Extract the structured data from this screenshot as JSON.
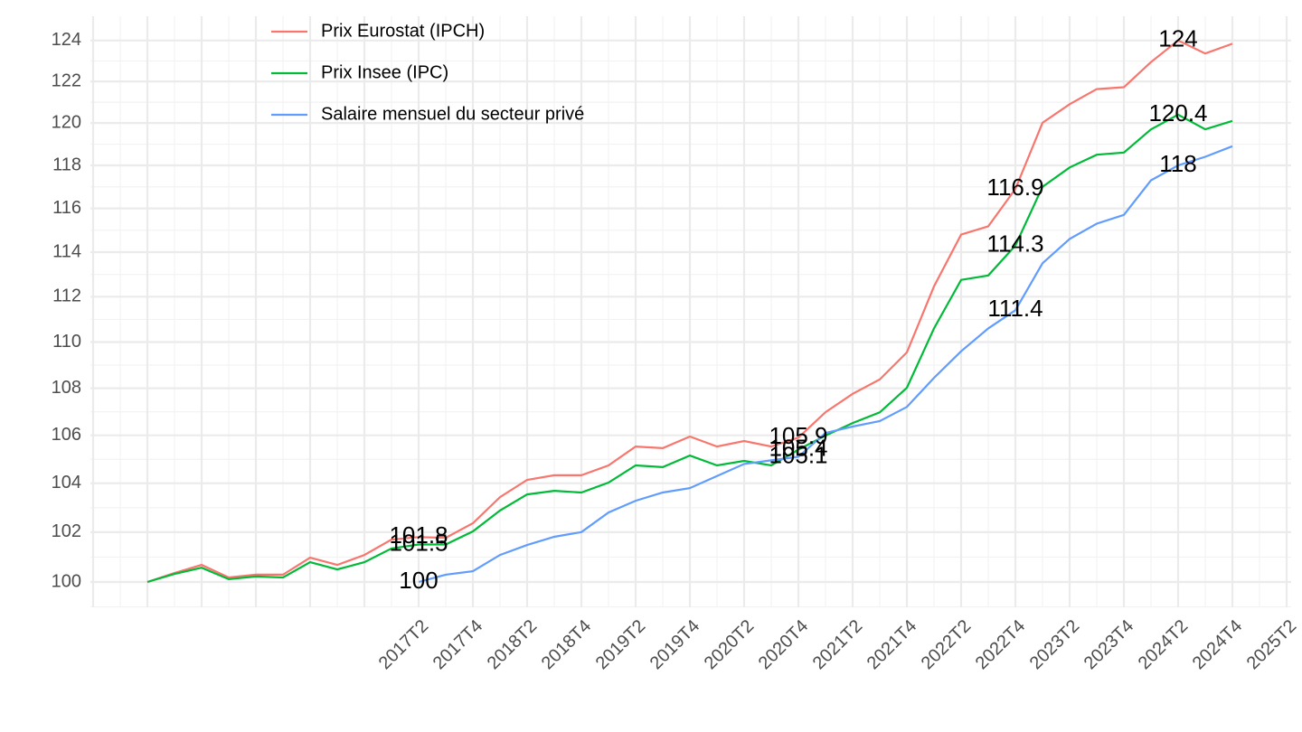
{
  "chart_data": {
    "type": "line",
    "categories": [
      null,
      null,
      null,
      null,
      null,
      null,
      null,
      null,
      null,
      null,
      null,
      null,
      "2017T2",
      null,
      "2017T4",
      null,
      "2018T2",
      null,
      "2018T4",
      null,
      "2019T2",
      null,
      "2019T4",
      null,
      "2020T2",
      null,
      "2020T4",
      null,
      "2021T2",
      null,
      "2021T4",
      null,
      "2022T2",
      null,
      "2022T4",
      null,
      "2023T2",
      null,
      "2023T4",
      null,
      "2024T2",
      null,
      "2024T4",
      null,
      "2025T2"
    ],
    "series": [
      {
        "name": "Prix Eurostat (IPCH)",
        "color": "#F8766D",
        "values": [
          null,
          null,
          100,
          100.36,
          100.68,
          100.18,
          100.29,
          100.29,
          100.97,
          100.68,
          101.08,
          101.7,
          101.8,
          101.77,
          102.36,
          103.43,
          104.14,
          104.33,
          104.33,
          104.74,
          105.53,
          105.46,
          105.95,
          105.53,
          105.76,
          105.53,
          105.9,
          106.98,
          107.76,
          108.38,
          109.55,
          112.46,
          114.8,
          115.18,
          116.9,
          120.01,
          120.9,
          121.63,
          121.72,
          122.94,
          124,
          123.36,
          123.84,
          null,
          null
        ],
        "value_labels": [
          null,
          null,
          null,
          null,
          null,
          null,
          null,
          null,
          null,
          null,
          null,
          null,
          "101.8",
          null,
          null,
          null,
          null,
          null,
          null,
          null,
          null,
          null,
          null,
          null,
          null,
          null,
          "105.9",
          null,
          null,
          null,
          null,
          null,
          null,
          null,
          "116.9",
          null,
          null,
          null,
          null,
          null,
          "124",
          null,
          null,
          null,
          null
        ]
      },
      {
        "name": "Prix Insee (IPC)",
        "color": "#00BA38",
        "values": [
          null,
          null,
          100,
          100.32,
          100.57,
          100.11,
          100.22,
          100.18,
          100.79,
          100.5,
          100.79,
          101.34,
          101.5,
          101.5,
          102.03,
          102.88,
          103.54,
          103.69,
          103.62,
          104.03,
          104.74,
          104.67,
          105.15,
          104.74,
          104.93,
          104.74,
          105.4,
          105.99,
          106.52,
          106.97,
          108.02,
          110.6,
          112.75,
          112.95,
          114.3,
          117,
          117.9,
          118.5,
          118.6,
          119.7,
          120.4,
          119.7,
          120.1,
          null,
          null
        ],
        "value_labels": [
          null,
          null,
          null,
          null,
          null,
          null,
          null,
          null,
          null,
          null,
          null,
          null,
          "101.5",
          null,
          null,
          null,
          null,
          null,
          null,
          null,
          null,
          null,
          null,
          null,
          null,
          null,
          "105.4",
          null,
          null,
          null,
          null,
          null,
          null,
          null,
          "114.3",
          null,
          null,
          null,
          null,
          null,
          "120.4",
          null,
          null,
          null,
          null
        ]
      },
      {
        "name": "Salaire mensuel du secteur privé",
        "color": "#619CFF",
        "values": [
          null,
          null,
          null,
          null,
          null,
          null,
          null,
          null,
          null,
          null,
          null,
          null,
          100,
          100.29,
          100.43,
          101.08,
          101.48,
          101.81,
          102,
          102.8,
          103.28,
          103.62,
          103.8,
          104.3,
          104.8,
          104.95,
          105.1,
          106.1,
          106.37,
          106.6,
          107.2,
          108.45,
          109.6,
          110.6,
          111.4,
          113.5,
          114.6,
          115.3,
          115.7,
          117.3,
          118,
          118.4,
          118.9,
          null,
          null
        ],
        "value_labels": [
          null,
          null,
          null,
          null,
          null,
          null,
          null,
          null,
          null,
          null,
          null,
          null,
          "100",
          null,
          null,
          null,
          null,
          null,
          null,
          null,
          null,
          null,
          null,
          null,
          null,
          null,
          "105.1",
          null,
          null,
          null,
          null,
          null,
          null,
          null,
          "111.4",
          null,
          null,
          null,
          null,
          null,
          "118",
          null,
          null,
          null,
          null
        ]
      }
    ],
    "ylim": [
      99,
      125.2
    ],
    "yticks": [
      100,
      102,
      104,
      106,
      108,
      110,
      112,
      114,
      116,
      118,
      120,
      122,
      124
    ],
    "log_y": true,
    "grid": true,
    "legend": "top-left"
  }
}
